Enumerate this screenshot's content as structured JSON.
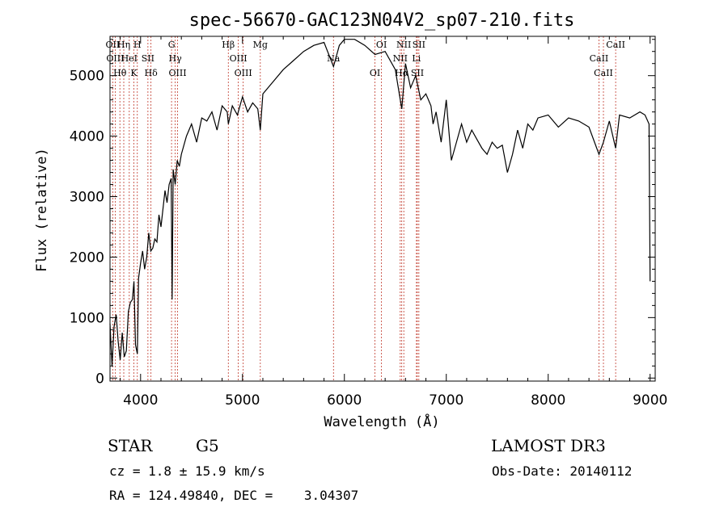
{
  "chart_data": {
    "type": "line",
    "title": "spec-56670-GAC123N04V2_sp07-210.fits",
    "xlabel": "Wavelength (Å)",
    "ylabel": "Flux (relative)",
    "xlim": [
      3700,
      9050
    ],
    "ylim": [
      -50,
      5650
    ],
    "xticks": [
      4000,
      5000,
      6000,
      7000,
      8000,
      9000
    ],
    "yticks": [
      0,
      1000,
      2000,
      3000,
      4000,
      5000
    ],
    "grid": false,
    "series": [
      {
        "x": [
          3700,
          3720,
          3740,
          3760,
          3780,
          3800,
          3820,
          3840,
          3860,
          3880,
          3900,
          3920,
          3935,
          3950,
          3968,
          3980,
          4000,
          4020,
          4040,
          4060,
          4080,
          4100,
          4120,
          4140,
          4160,
          4180,
          4200,
          4220,
          4240,
          4260,
          4280,
          4300,
          4310,
          4320,
          4340,
          4360,
          4380,
          4400,
          4450,
          4500,
          4550,
          4600,
          4650,
          4700,
          4750,
          4800,
          4850,
          4861,
          4900,
          4950,
          5000,
          5050,
          5100,
          5150,
          5175,
          5200,
          5250,
          5300,
          5400,
          5500,
          5600,
          5700,
          5800,
          5893,
          5950,
          6000,
          6100,
          6200,
          6300,
          6400,
          6500,
          6563,
          6600,
          6650,
          6700,
          6750,
          6800,
          6850,
          6870,
          6900,
          6950,
          7000,
          7050,
          7100,
          7150,
          7200,
          7250,
          7300,
          7350,
          7400,
          7450,
          7500,
          7550,
          7600,
          7650,
          7700,
          7750,
          7800,
          7850,
          7900,
          8000,
          8100,
          8200,
          8300,
          8400,
          8498,
          8542,
          8600,
          8662,
          8700,
          8800,
          8900,
          8950,
          8990,
          9000
        ],
        "y": [
          900,
          200,
          850,
          1050,
          600,
          300,
          750,
          350,
          450,
          1100,
          1250,
          1300,
          1600,
          550,
          400,
          1650,
          1900,
          2100,
          1800,
          2000,
          2400,
          2100,
          2150,
          2300,
          2250,
          2700,
          2500,
          2800,
          3100,
          2900,
          3200,
          3300,
          1300,
          3450,
          3200,
          3600,
          3500,
          3700,
          4000,
          4200,
          3900,
          4300,
          4250,
          4400,
          4100,
          4500,
          4400,
          4200,
          4500,
          4350,
          4650,
          4400,
          4550,
          4450,
          4100,
          4700,
          4800,
          4900,
          5100,
          5250,
          5400,
          5500,
          5550,
          5150,
          5500,
          5600,
          5600,
          5500,
          5350,
          5400,
          5100,
          4450,
          5200,
          4800,
          5000,
          4600,
          4700,
          4500,
          4200,
          4400,
          3900,
          4600,
          3600,
          3900,
          4200,
          3900,
          4100,
          3950,
          3800,
          3700,
          3900,
          3800,
          3850,
          3400,
          3700,
          4100,
          3800,
          4200,
          4100,
          4300,
          4350,
          4150,
          4300,
          4250,
          4150,
          3700,
          3900,
          4250,
          3800,
          4350,
          4300,
          4400,
          4350,
          4200,
          1600
        ]
      }
    ],
    "spectral_lines": [
      {
        "wl": 3727,
        "label": "OII"
      },
      {
        "wl": 3751,
        "label": "OIII"
      },
      {
        "wl": 3797,
        "label": "Hθ"
      },
      {
        "wl": 3835,
        "label": "Hη"
      },
      {
        "wl": 3889,
        "label": "HeI"
      },
      {
        "wl": 3934,
        "label": "K"
      },
      {
        "wl": 3968,
        "label": "H"
      },
      {
        "wl": 4072,
        "label": "SII"
      },
      {
        "wl": 4102,
        "label": "Hδ"
      },
      {
        "wl": 4304,
        "label": "G"
      },
      {
        "wl": 4340,
        "label": "Hγ"
      },
      {
        "wl": 4363,
        "label": "OIII"
      },
      {
        "wl": 4861,
        "label": "Hβ"
      },
      {
        "wl": 4959,
        "label": "OIII"
      },
      {
        "wl": 5007,
        "label": "OIII"
      },
      {
        "wl": 5175,
        "label": "Mg"
      },
      {
        "wl": 5893,
        "label": "Na"
      },
      {
        "wl": 6300,
        "label": "OI"
      },
      {
        "wl": 6364,
        "label": "OI"
      },
      {
        "wl": 6548,
        "label": "NII"
      },
      {
        "wl": 6563,
        "label": "Hα"
      },
      {
        "wl": 6583,
        "label": "NII"
      },
      {
        "wl": 6707,
        "label": "Li"
      },
      {
        "wl": 6716,
        "label": "SII"
      },
      {
        "wl": 6731,
        "label": "SII"
      },
      {
        "wl": 8498,
        "label": "CaII"
      },
      {
        "wl": 8542,
        "label": "CaII"
      },
      {
        "wl": 8662,
        "label": "CaII"
      }
    ]
  },
  "info": {
    "class": "STAR",
    "subclass": "G5",
    "survey": "LAMOST DR3",
    "cz": "cz = 1.8 ± 15.9 km/s",
    "obs_date": "Obs-Date: 20140112",
    "coords": "RA = 124.49840, DEC =    3.04307"
  }
}
